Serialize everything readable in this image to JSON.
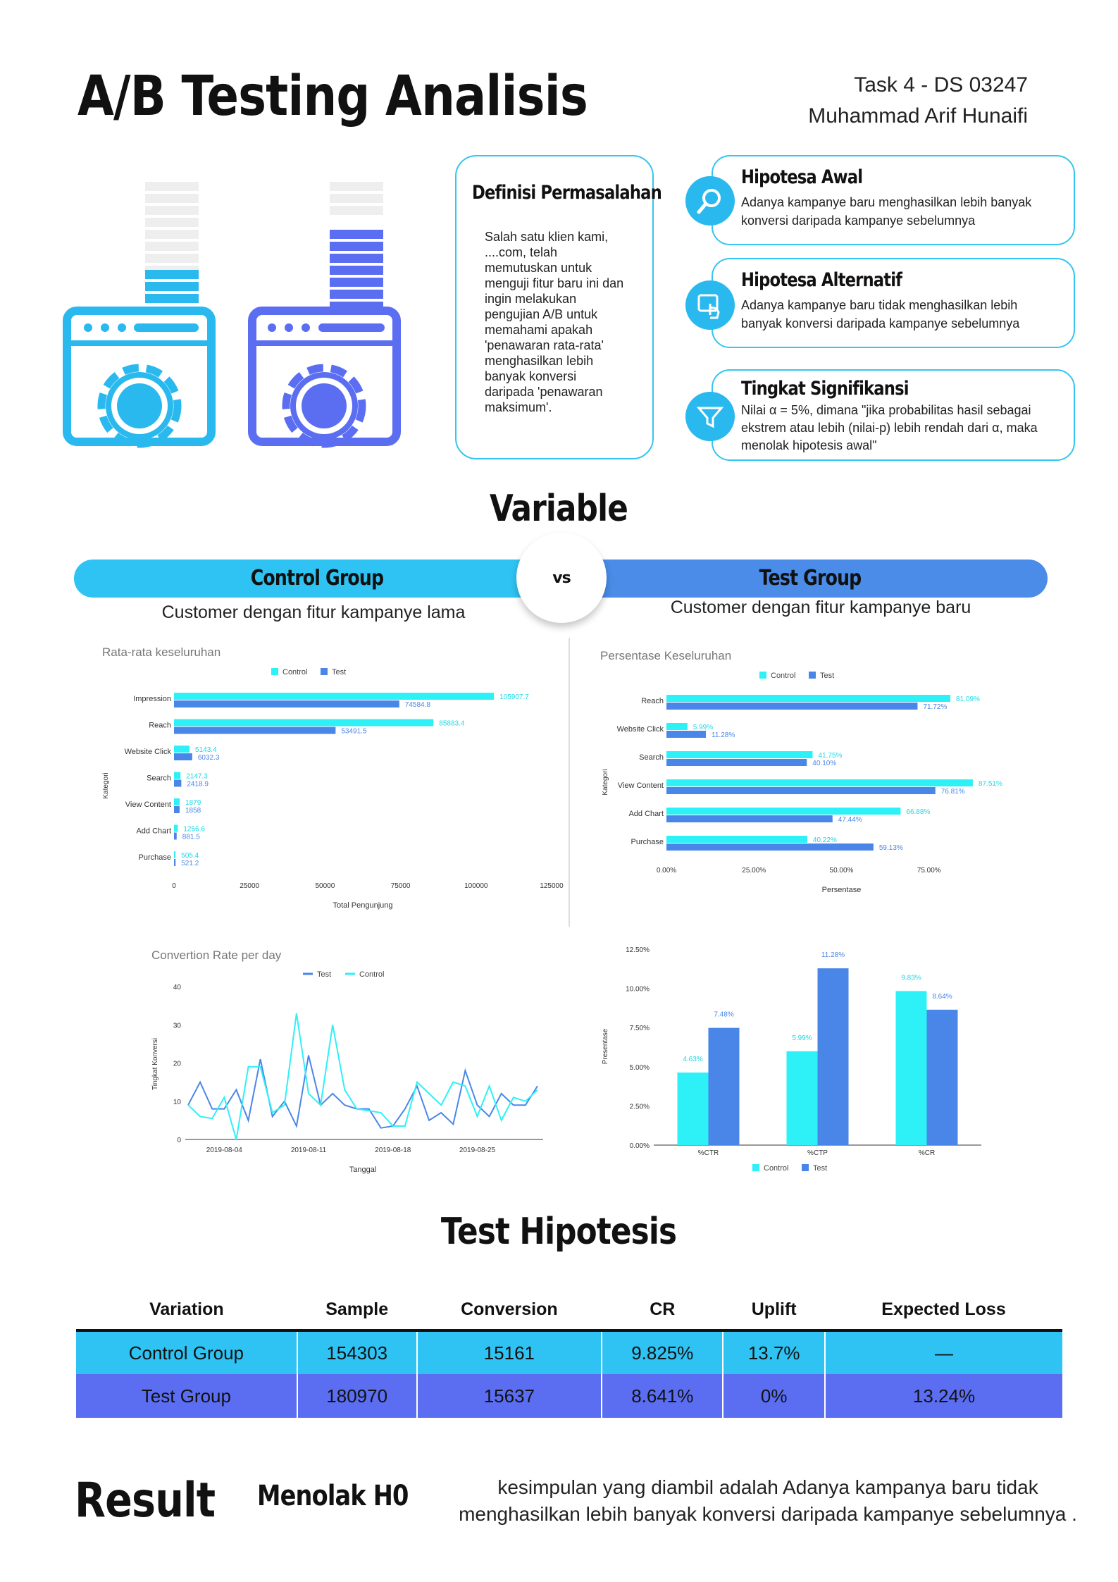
{
  "header": {
    "title": "A/B Testing Analisis",
    "task": "Task 4 - DS 03247",
    "author": "Muhammad Arif Hunaifi"
  },
  "definition": {
    "title": "Definisi Permasalahan",
    "body": "Salah satu klien kami, ....com, telah memutuskan untuk menguji fitur baru ini dan ingin melakukan pengujian A/B untuk memahami apakah 'penawaran rata-rata' menghasilkan lebih banyak konversi daripada 'penawaran maksimum'."
  },
  "hypotheses": [
    {
      "title": "Hipotesa Awal",
      "body": "Adanya kampanye baru menghasilkan lebih banyak konversi daripada kampanye sebelumnya",
      "icon": "search-icon"
    },
    {
      "title": "Hipotesa Alternatif",
      "body": "Adanya kampanye baru tidak menghasilkan lebih banyak konversi daripada kampanye sebelumnya",
      "icon": "touch-screen-icon"
    },
    {
      "title": "Tingkat Signifikansi",
      "body": "Nilai α = 5%, dimana \"jika probabilitas hasil sebagai ekstrem atau lebih (nilai-p) lebih rendah dari α, maka menolak hipotesis awal\"",
      "icon": "funnel-icon"
    }
  ],
  "variable": {
    "title": "Variable",
    "control_label": "Control Group",
    "test_label": "Test Group",
    "vs": "vs",
    "control_desc": "Customer dengan fitur kampanye lama",
    "test_desc": "Customer dengan fitur kampanye baru"
  },
  "colors": {
    "control": "#2ef0f7",
    "test": "#4a86e8",
    "accent": "#2fc3f3",
    "test_row": "#5b6ef2"
  },
  "chart_data": [
    {
      "type": "bar",
      "orientation": "horizontal",
      "title": "Rata-rata keseluruhan",
      "categories": [
        "Impression",
        "Reach",
        "Website Click",
        "Search",
        "View Content",
        "Add Chart",
        "Purchase"
      ],
      "series": [
        {
          "name": "Control",
          "values": [
            105907.7,
            85883.4,
            5143.4,
            2147.3,
            1879,
            1256.6,
            505.4
          ],
          "labels": [
            "105907.7",
            "85883.4",
            "5143.4",
            "2147.3",
            "1879",
            "1256.6",
            "505.4"
          ]
        },
        {
          "name": "Test",
          "values": [
            74584.8,
            53491.5,
            6032.3,
            2418.9,
            1858,
            881.5,
            521.2
          ],
          "labels": [
            "74584.8",
            "53491.5",
            "6032.3",
            "2418.9",
            "1858",
            "881.5",
            "521.2"
          ]
        }
      ],
      "xlabel": "Total Pengunjung",
      "ylabel": "Kategori",
      "xlim": [
        0,
        125000
      ],
      "xticks": [
        "0",
        "25000",
        "50000",
        "75000",
        "100000",
        "125000"
      ],
      "legend": "top"
    },
    {
      "type": "bar",
      "orientation": "horizontal",
      "title": "Persentase Keseluruhan",
      "categories": [
        "Reach",
        "Website Click",
        "Search",
        "View Content",
        "Add Chart",
        "Purchase"
      ],
      "series": [
        {
          "name": "Control",
          "values": [
            81.09,
            5.99,
            41.75,
            87.51,
            66.88,
            40.22
          ],
          "labels": [
            "81.09%",
            "5.99%",
            "41.75%",
            "87.51%",
            "66.88%",
            "40.22%"
          ]
        },
        {
          "name": "Test",
          "values": [
            71.72,
            11.28,
            40.1,
            76.81,
            47.44,
            59.13
          ],
          "labels": [
            "71.72%",
            "11.28%",
            "40.10%",
            "76.81%",
            "47.44%",
            "59.13%"
          ]
        }
      ],
      "xlabel": "Persentase",
      "ylabel": "Kategori",
      "xlim": [
        0,
        100
      ],
      "xticks": [
        "0.00%",
        "25.00%",
        "50.00%",
        "75.00%"
      ],
      "legend": "top"
    },
    {
      "type": "line",
      "title": "Convertion Rate per day",
      "x": [
        "2019-08-01",
        "2019-08-02",
        "2019-08-03",
        "2019-08-04",
        "2019-08-05",
        "2019-08-06",
        "2019-08-07",
        "2019-08-08",
        "2019-08-09",
        "2019-08-10",
        "2019-08-11",
        "2019-08-12",
        "2019-08-13",
        "2019-08-14",
        "2019-08-15",
        "2019-08-16",
        "2019-08-17",
        "2019-08-18",
        "2019-08-19",
        "2019-08-20",
        "2019-08-21",
        "2019-08-22",
        "2019-08-23",
        "2019-08-24",
        "2019-08-25",
        "2019-08-26",
        "2019-08-27",
        "2019-08-28",
        "2019-08-29",
        "2019-08-30"
      ],
      "xticks": [
        "2019-08-04",
        "2019-08-11",
        "2019-08-18",
        "2019-08-25"
      ],
      "series": [
        {
          "name": "Test",
          "values": [
            9,
            15,
            8,
            8,
            13,
            5,
            21,
            6,
            10,
            3.5,
            22,
            9,
            12,
            9,
            8,
            8,
            3,
            3.5,
            8,
            14,
            5,
            7,
            4,
            18,
            9,
            6,
            12,
            9,
            9,
            14
          ]
        },
        {
          "name": "Control",
          "values": [
            9,
            6,
            5.5,
            11,
            0,
            19,
            19,
            7,
            9,
            33,
            12,
            9,
            30,
            13,
            8,
            7.5,
            7,
            3.5,
            3.5,
            15,
            12,
            9,
            15,
            14,
            6,
            14,
            5,
            11,
            10,
            13
          ]
        }
      ],
      "xlabel": "Tanggal",
      "ylabel": "Tingkat Konversi",
      "ylim": [
        0,
        40
      ],
      "yticks": [
        "0",
        "10",
        "20",
        "30",
        "40"
      ],
      "legend": "top"
    },
    {
      "type": "bar",
      "categories": [
        "%CTR",
        "%CTP",
        "%CR"
      ],
      "series": [
        {
          "name": "Control",
          "values": [
            4.63,
            5.99,
            9.83
          ],
          "labels": [
            "4.63%",
            "5.99%",
            "9.83%"
          ]
        },
        {
          "name": "Test",
          "values": [
            7.48,
            11.28,
            8.64
          ],
          "labels": [
            "7.48%",
            "11.28%",
            "8.64%"
          ]
        }
      ],
      "ylabel": "Presentase",
      "ylim": [
        0,
        12.5
      ],
      "yticks": [
        "0.00%",
        "2.50%",
        "5.00%",
        "7.50%",
        "10.00%",
        "12.50%"
      ],
      "legend": "bottom"
    }
  ],
  "test": {
    "title": "Test Hipotesis",
    "headers": [
      "Variation",
      "Sample",
      "Conversion",
      "CR",
      "Uplift",
      "Expected Loss"
    ],
    "rows": [
      [
        "Control Group",
        "154303",
        "15161",
        "9.825%",
        "13.7%",
        "—"
      ],
      [
        "Test Group",
        "180970",
        "15637",
        "8.641%",
        "0%",
        "13.24%"
      ]
    ]
  },
  "result": {
    "title": "Result",
    "verdict": "Menolak H0",
    "text": "kesimpulan yang diambil adalah Adanya kampanya baru tidak menghasilkan lebih banyak konversi daripada kampanye sebelumnya ."
  }
}
